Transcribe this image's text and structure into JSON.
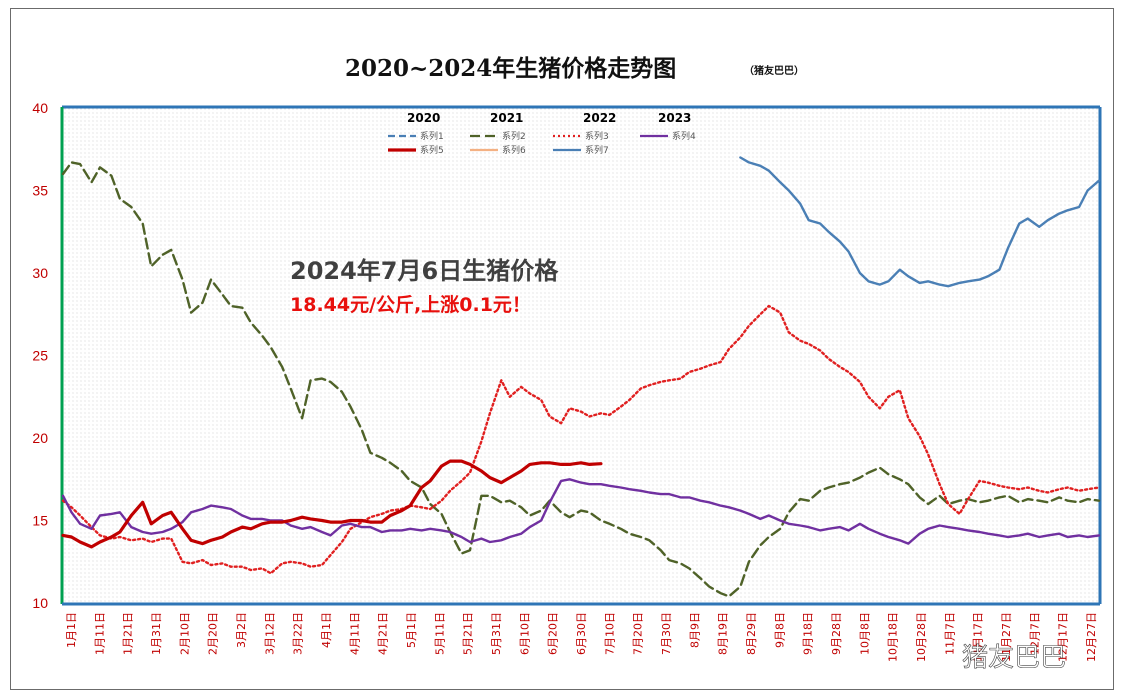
{
  "chart_data": {
    "type": "line",
    "title": "2020~2024年生猪价格走势图",
    "subtitle": "（猪友巴巴）",
    "ylim": [
      10,
      40
    ],
    "yticks": [
      10,
      15,
      20,
      25,
      30,
      35,
      40
    ],
    "xlabels": [
      "1月1日",
      "1月11日",
      "1月21日",
      "1月31日",
      "2月10日",
      "2月20日",
      "3月2日",
      "3月12日",
      "3月22日",
      "4月1日",
      "4月11日",
      "4月21日",
      "5月1日",
      "5月11日",
      "5月21日",
      "5月31日",
      "6月10日",
      "6月20日",
      "6月30日",
      "7月10日",
      "7月20日",
      "7月30日",
      "8月9日",
      "8月19日",
      "8月29日",
      "9月8日",
      "9月18日",
      "9月28日",
      "10月8日",
      "10月18日",
      "10月28日",
      "11月7日",
      "11月17日",
      "11月27日",
      "12月7日",
      "12月17日",
      "12月27日"
    ],
    "grid": false,
    "legend_position": "top-center",
    "legend_years": [
      "2020",
      "2021",
      "2022",
      "2023"
    ],
    "series": [
      {
        "name": "系列1",
        "color": "#4a7fb5",
        "dash": "dash",
        "x": [],
        "y": []
      },
      {
        "name": "系列2",
        "color": "#4f6228",
        "dash": "longdash",
        "x": [
          0,
          3,
          6,
          10,
          13,
          17,
          20,
          24,
          28,
          31,
          35,
          38,
          42,
          45,
          49,
          52,
          56,
          59,
          63,
          66,
          70,
          73,
          77,
          80,
          84,
          87,
          91,
          94,
          98,
          101,
          105,
          108,
          112,
          115,
          119,
          122,
          126,
          129,
          133,
          136,
          140,
          143,
          147,
          150,
          154,
          157,
          161,
          164,
          168,
          171,
          175,
          178,
          182,
          185,
          189,
          192,
          196,
          199,
          203,
          206,
          210,
          213,
          217,
          220,
          224,
          227,
          231,
          234,
          238,
          241,
          245,
          248,
          252,
          255,
          259,
          262,
          266,
          269,
          273,
          276,
          280,
          283,
          287,
          290,
          294,
          297,
          301,
          304,
          308,
          311,
          315,
          318,
          322,
          325,
          329,
          332,
          336,
          339,
          343,
          346,
          350,
          353,
          357,
          360,
          364
        ],
        "y": [
          36.0,
          36.7,
          36.6,
          35.5,
          36.4,
          35.9,
          34.5,
          34.0,
          33.0,
          30.4,
          31.1,
          31.4,
          29.6,
          27.6,
          28.2,
          29.6,
          28.7,
          28.0,
          27.9,
          27.0,
          26.2,
          25.5,
          24.3,
          23.0,
          21.2,
          23.5,
          23.6,
          23.4,
          22.8,
          21.9,
          20.5,
          19.1,
          18.8,
          18.5,
          18.0,
          17.4,
          17.0,
          16.0,
          15.4,
          14.3,
          13.0,
          13.2,
          16.5,
          16.5,
          16.1,
          16.2,
          15.8,
          15.3,
          15.6,
          16.2,
          15.5,
          15.2,
          15.6,
          15.5,
          15.0,
          14.8,
          14.5,
          14.2,
          14.0,
          13.8,
          13.2,
          12.6,
          12.4,
          12.1,
          11.5,
          11.0,
          10.6,
          10.4,
          11.0,
          12.5,
          13.5,
          14.0,
          14.5,
          15.5,
          16.3,
          16.2,
          16.8,
          17.0,
          17.2,
          17.3,
          17.6,
          17.9,
          18.2,
          17.8,
          17.5,
          17.2,
          16.4,
          16.0,
          16.5,
          16.0,
          16.2,
          16.3,
          16.1,
          16.2,
          16.4,
          16.5,
          16.1,
          16.3,
          16.2,
          16.1,
          16.4,
          16.2,
          16.1,
          16.3,
          16.2
        ]
      },
      {
        "name": "系列3",
        "color": "#e02020",
        "dash": "dot",
        "x": [
          0,
          3,
          6,
          10,
          13,
          17,
          20,
          24,
          28,
          31,
          35,
          38,
          42,
          45,
          49,
          52,
          56,
          59,
          63,
          66,
          70,
          73,
          77,
          80,
          84,
          87,
          91,
          94,
          98,
          101,
          105,
          108,
          112,
          115,
          119,
          122,
          126,
          129,
          133,
          136,
          140,
          143,
          147,
          150,
          154,
          157,
          161,
          164,
          168,
          171,
          175,
          178,
          182,
          185,
          189,
          192,
          196,
          199,
          203,
          206,
          210,
          213,
          217,
          220,
          224,
          227,
          231,
          234,
          238,
          241,
          245,
          248,
          252,
          255,
          259,
          262,
          266,
          269,
          273,
          276,
          280,
          283,
          287,
          290,
          294,
          297,
          301,
          304,
          308,
          311,
          315,
          318,
          322,
          325,
          329,
          332,
          336,
          339,
          343,
          346,
          350,
          353,
          357,
          360,
          364
        ],
        "y": [
          16.2,
          15.8,
          15.3,
          14.6,
          14.1,
          13.9,
          14.0,
          13.8,
          13.9,
          13.7,
          13.9,
          13.9,
          12.5,
          12.4,
          12.6,
          12.3,
          12.4,
          12.2,
          12.2,
          12.0,
          12.1,
          11.8,
          12.4,
          12.5,
          12.4,
          12.2,
          12.3,
          12.9,
          13.7,
          14.5,
          14.9,
          15.2,
          15.4,
          15.6,
          15.7,
          15.9,
          15.8,
          15.7,
          16.2,
          16.8,
          17.4,
          17.9,
          19.8,
          21.5,
          23.5,
          22.5,
          23.1,
          22.7,
          22.3,
          21.3,
          20.9,
          21.8,
          21.6,
          21.3,
          21.5,
          21.4,
          21.9,
          22.3,
          23.0,
          23.2,
          23.4,
          23.5,
          23.6,
          24.0,
          24.2,
          24.4,
          24.6,
          25.4,
          26.1,
          26.8,
          27.5,
          28.0,
          27.6,
          26.4,
          25.9,
          25.7,
          25.3,
          24.8,
          24.3,
          24.0,
          23.4,
          22.5,
          21.8,
          22.5,
          22.9,
          21.2,
          20.1,
          19.0,
          17.2,
          16.0,
          15.4,
          16.3,
          17.4,
          17.3,
          17.1,
          17.0,
          16.9,
          17.0,
          16.8,
          16.7,
          16.9,
          17.0,
          16.8,
          16.9,
          17.0
        ]
      },
      {
        "name": "系列4",
        "color": "#7030a0",
        "dash": "solid",
        "x": [
          0,
          3,
          6,
          10,
          13,
          17,
          20,
          24,
          28,
          31,
          35,
          38,
          42,
          45,
          49,
          52,
          56,
          59,
          63,
          66,
          70,
          73,
          77,
          80,
          84,
          87,
          91,
          94,
          98,
          101,
          105,
          108,
          112,
          115,
          119,
          122,
          126,
          129,
          133,
          136,
          140,
          143,
          147,
          150,
          154,
          157,
          161,
          164,
          168,
          171,
          175,
          178,
          182,
          185,
          189,
          192,
          196,
          199,
          203,
          206,
          210,
          213,
          217,
          220,
          224,
          227,
          231,
          234,
          238,
          241,
          245,
          248,
          252,
          255,
          259,
          262,
          266,
          269,
          273,
          276,
          280,
          283,
          287,
          290,
          294,
          297,
          301,
          304,
          308,
          311,
          315,
          318,
          322,
          325,
          329,
          332,
          336,
          339,
          343,
          346,
          350,
          353,
          357,
          360,
          364
        ],
        "y": [
          16.5,
          15.5,
          14.8,
          14.5,
          15.3,
          15.4,
          15.5,
          14.6,
          14.3,
          14.2,
          14.3,
          14.5,
          14.9,
          15.5,
          15.7,
          15.9,
          15.8,
          15.7,
          15.3,
          15.1,
          15.1,
          15.0,
          15.0,
          14.7,
          14.5,
          14.6,
          14.3,
          14.1,
          14.7,
          14.8,
          14.6,
          14.6,
          14.3,
          14.4,
          14.4,
          14.5,
          14.4,
          14.5,
          14.4,
          14.3,
          14.0,
          13.7,
          13.9,
          13.7,
          13.8,
          14.0,
          14.2,
          14.6,
          15.0,
          16.1,
          17.4,
          17.5,
          17.3,
          17.2,
          17.2,
          17.1,
          17.0,
          16.9,
          16.8,
          16.7,
          16.6,
          16.6,
          16.4,
          16.4,
          16.2,
          16.1,
          15.9,
          15.8,
          15.6,
          15.4,
          15.1,
          15.3,
          15.0,
          14.8,
          14.7,
          14.6,
          14.4,
          14.5,
          14.6,
          14.4,
          14.8,
          14.5,
          14.2,
          14.0,
          13.8,
          13.6,
          14.2,
          14.5,
          14.7,
          14.6,
          14.5,
          14.4,
          14.3,
          14.2,
          14.1,
          14.0,
          14.1,
          14.2,
          14.0,
          14.1,
          14.2,
          14.0,
          14.1,
          14.0,
          14.1
        ]
      },
      {
        "name": "系列5",
        "color": "#c00000",
        "dash": "solid-thick",
        "x": [
          0,
          3,
          6,
          10,
          13,
          17,
          20,
          24,
          28,
          31,
          35,
          38,
          42,
          45,
          49,
          52,
          56,
          59,
          63,
          66,
          70,
          73,
          77,
          80,
          84,
          87,
          91,
          94,
          98,
          101,
          105,
          108,
          112,
          115,
          119,
          122,
          126,
          129,
          133,
          136,
          140,
          143,
          147,
          150,
          154,
          157,
          161,
          164,
          168,
          171,
          175,
          178,
          182,
          185,
          189
        ],
        "y": [
          14.1,
          14.0,
          13.7,
          13.4,
          13.7,
          14.0,
          14.3,
          15.3,
          16.1,
          14.8,
          15.3,
          15.5,
          14.5,
          13.8,
          13.6,
          13.8,
          14.0,
          14.3,
          14.6,
          14.5,
          14.8,
          14.9,
          14.9,
          15.0,
          15.2,
          15.1,
          15.0,
          14.9,
          14.9,
          15.0,
          15.0,
          14.9,
          14.9,
          15.3,
          15.6,
          15.9,
          17.0,
          17.4,
          18.3,
          18.6,
          18.6,
          18.4,
          18.0,
          17.6,
          17.3,
          17.6,
          18.0,
          18.4,
          18.5,
          18.5,
          18.4,
          18.4,
          18.5,
          18.4,
          18.44
        ]
      },
      {
        "name": "系列6",
        "color": "#f4b183",
        "dash": "solid",
        "x": [],
        "y": []
      },
      {
        "name": "系列7",
        "color": "#4a7fb5",
        "dash": "solid",
        "x": [
          0,
          3,
          6,
          10,
          13,
          17,
          20,
          24,
          28,
          31,
          35,
          38,
          42,
          45,
          49,
          52,
          56,
          59,
          63,
          66,
          70,
          73,
          77,
          80,
          84,
          87,
          91,
          94,
          98,
          101,
          105,
          108,
          112,
          115,
          119,
          122,
          126,
          129,
          133,
          136,
          140,
          143,
          147,
          150,
          154,
          157,
          161,
          164,
          168,
          171,
          175,
          178,
          182,
          185,
          189,
          192,
          196,
          199,
          203,
          206,
          210,
          213,
          217,
          220,
          224,
          227,
          231,
          234,
          238,
          241,
          245,
          248,
          252,
          255,
          259,
          262,
          266,
          269,
          273,
          276,
          280,
          283,
          287,
          290,
          294,
          297,
          301,
          304,
          308,
          311,
          315,
          318,
          322,
          325,
          329,
          332,
          336,
          339,
          343,
          346,
          350,
          353,
          357,
          360,
          364
        ],
        "y": [
          null,
          null,
          null,
          null,
          null,
          null,
          null,
          null,
          null,
          null,
          null,
          null,
          null,
          null,
          null,
          null,
          null,
          null,
          null,
          null,
          null,
          null,
          null,
          null,
          null,
          null,
          null,
          null,
          null,
          null,
          null,
          null,
          null,
          null,
          null,
          null,
          null,
          null,
          null,
          null,
          null,
          null,
          null,
          null,
          null,
          null,
          null,
          null,
          null,
          null,
          null,
          null,
          null,
          null,
          null,
          null,
          null,
          null,
          null,
          null,
          null,
          null,
          null,
          null,
          null,
          null,
          null,
          null,
          37.0,
          36.7,
          36.5,
          36.2,
          35.5,
          35.0,
          34.2,
          33.2,
          33.0,
          32.5,
          31.9,
          31.3,
          30.0,
          29.5,
          29.3,
          29.5,
          30.2,
          29.8,
          29.4,
          29.5,
          29.3,
          29.2,
          29.4,
          29.5,
          29.6,
          29.8,
          30.2,
          31.5,
          33.0,
          33.3,
          32.8,
          33.2,
          33.6,
          33.8,
          34.0,
          35.0,
          35.6
        ]
      }
    ],
    "annotations": {
      "headline": "2024年7月6日生猪价格",
      "detail": "18.44元/公斤,上涨0.1元！"
    }
  },
  "watermark": "猪友巴巴"
}
